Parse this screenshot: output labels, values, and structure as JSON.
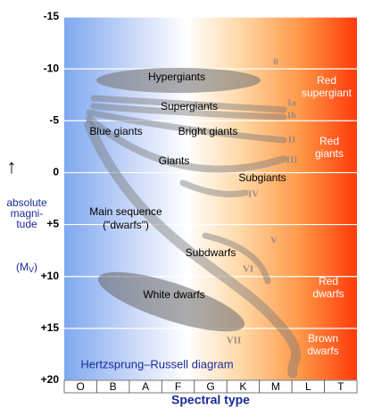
{
  "chart_data": {
    "type": "hr-diagram",
    "title": "Hertzsprung–Russell diagram",
    "x_label": "Spectral type",
    "y_label_lines": [
      "absolute",
      "magni-",
      "tude"
    ],
    "y_label_symbol": [
      "(M",
      "V",
      ")"
    ],
    "categories": [
      "O",
      "B",
      "A",
      "F",
      "G",
      "K",
      "M",
      "L",
      "T"
    ],
    "ylim": [
      -15,
      20
    ],
    "yticks": [
      -15,
      -10,
      -5,
      0,
      {
        "value": 5,
        "label": "+5"
      },
      {
        "value": 10,
        "label": "+10"
      },
      {
        "value": 15,
        "label": "+15"
      },
      {
        "value": 20,
        "label": "+20"
      }
    ],
    "grid": true,
    "annotations": [
      "Hypergiants",
      "Supergiants",
      "Blue giants",
      "Bright giants",
      "Giants",
      "Subgiants",
      "Main sequence",
      "(\"dwarfs\")",
      "Subdwarfs",
      "White dwarfs",
      "Red",
      "supergiant",
      "Red",
      "giants",
      "Red",
      "dwarfs",
      "Brown",
      "dwarfs"
    ],
    "luminosity_classes": [
      "0",
      "Ia",
      "Ib",
      "II",
      "III",
      "IV",
      "V",
      "VI",
      "VII"
    ]
  }
}
